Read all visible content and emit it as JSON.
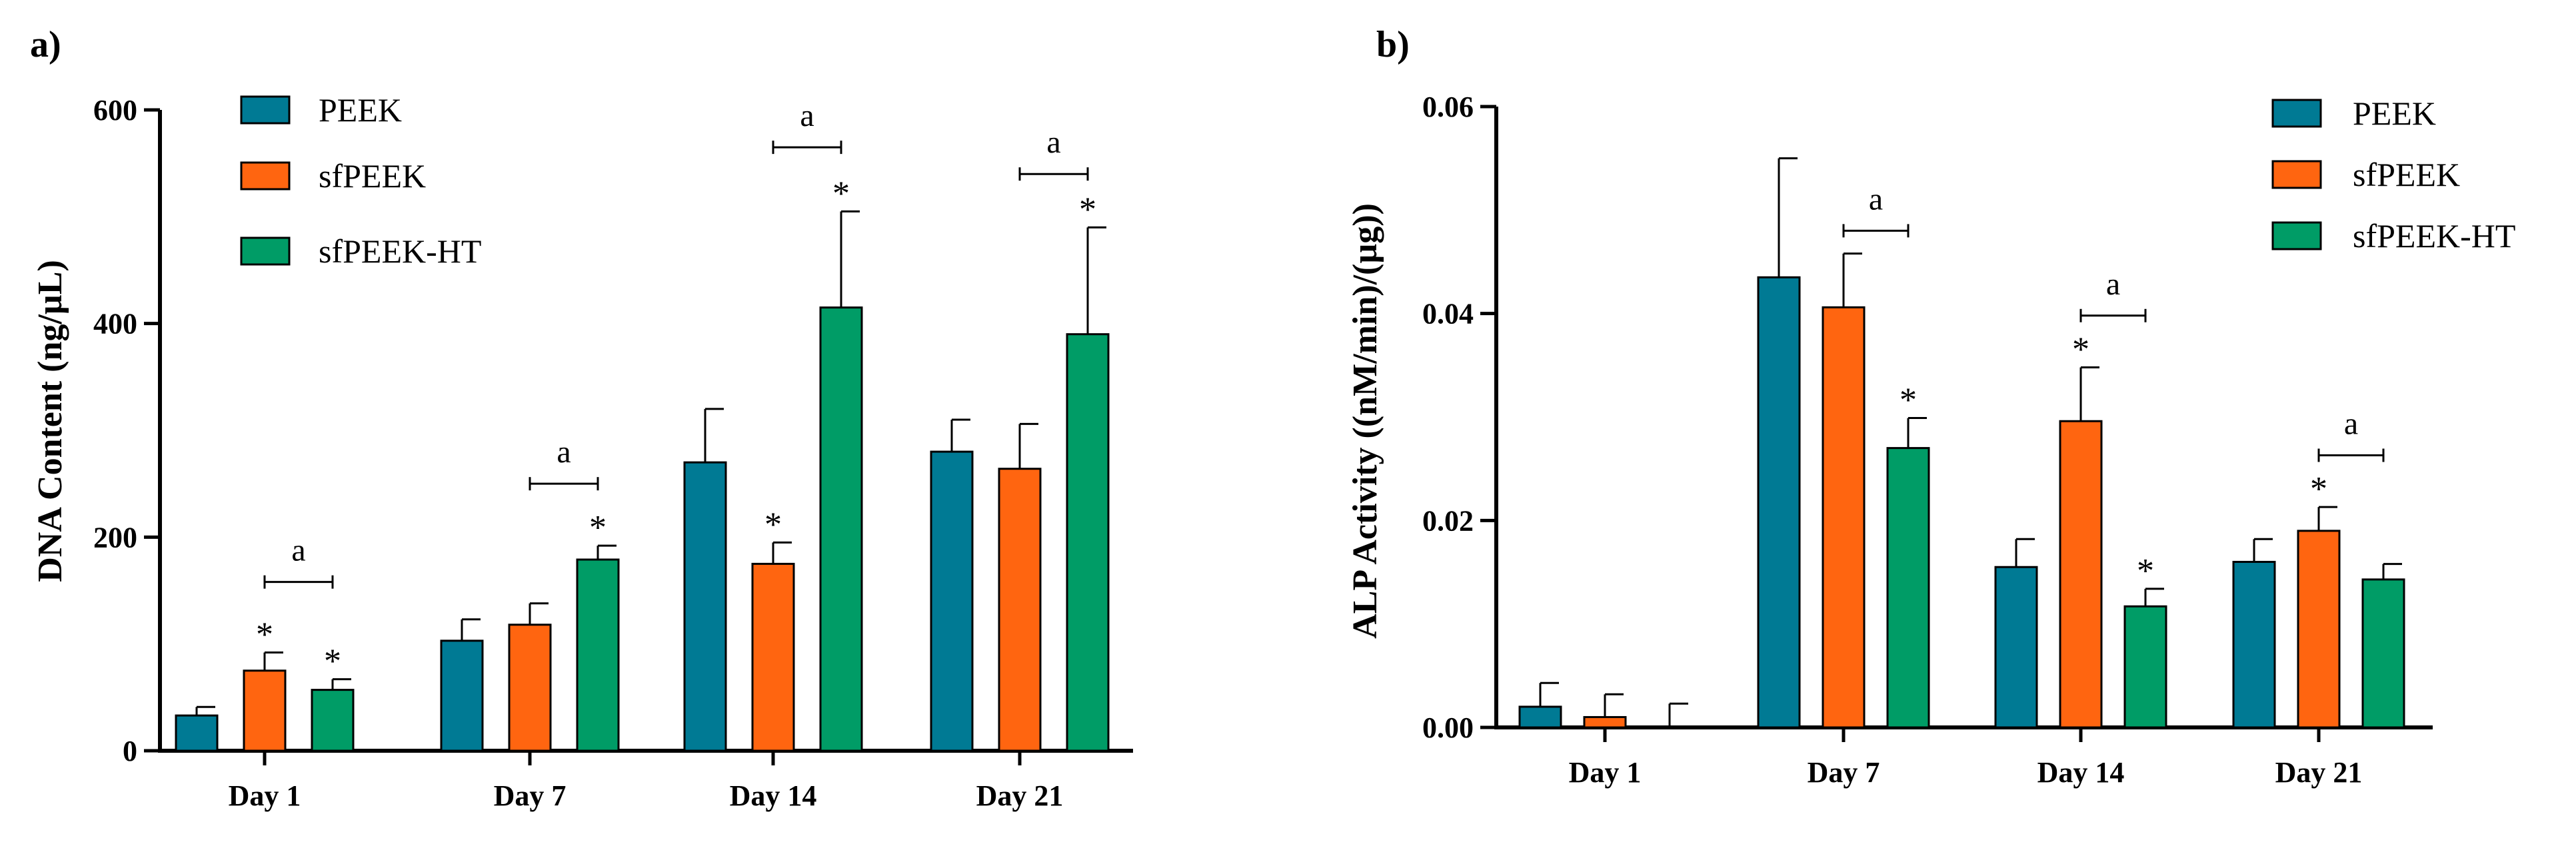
{
  "chart_data": [
    {
      "type": "bar",
      "panel": "a)",
      "title": "",
      "xlabel": "",
      "ylabel": "DNA Content (ng/µL)",
      "ylim": [
        0,
        600
      ],
      "yticks": [
        0,
        200,
        400,
        600
      ],
      "ytick_labels": [
        "0",
        "200",
        "400",
        "600"
      ],
      "categories": [
        "Day 1",
        "Day 7",
        "Day 14",
        "Day 21"
      ],
      "legend_position": "top-left",
      "series": [
        {
          "name": "PEEK",
          "color": "#007A94",
          "values": [
            33,
            103,
            270,
            280
          ],
          "errors": [
            8,
            20,
            50,
            30
          ],
          "stars": [
            false,
            false,
            false,
            false
          ]
        },
        {
          "name": "sfPEEK",
          "color": "#FF6510",
          "values": [
            75,
            118,
            175,
            264
          ],
          "errors": [
            17,
            20,
            20,
            42
          ],
          "stars": [
            true,
            false,
            true,
            false
          ]
        },
        {
          "name": "sfPEEK-HT",
          "color": "#009C66",
          "values": [
            57,
            179,
            415,
            390
          ],
          "errors": [
            10,
            13,
            90,
            100
          ],
          "stars": [
            true,
            true,
            true,
            true
          ]
        }
      ],
      "significance": [
        {
          "category": 0,
          "from": "sfPEEK",
          "to": "sfPEEK-HT",
          "label": "a",
          "level": 158
        },
        {
          "category": 1,
          "from": "sfPEEK",
          "to": "sfPEEK-HT",
          "label": "a",
          "level": 250
        },
        {
          "category": 2,
          "from": "sfPEEK",
          "to": "sfPEEK-HT",
          "label": "a",
          "level": 565
        },
        {
          "category": 3,
          "from": "sfPEEK",
          "to": "sfPEEK-HT",
          "label": "a",
          "level": 540
        }
      ],
      "star_symbol": "*"
    },
    {
      "type": "bar",
      "panel": "b)",
      "title": "",
      "xlabel": "",
      "ylabel": "ALP Activity ((nM/min)/(µg))",
      "ylim": [
        0,
        0.06
      ],
      "yticks": [
        0,
        0.02,
        0.04,
        0.06
      ],
      "ytick_labels": [
        "0.00",
        "0.02",
        "0.04",
        "0.06"
      ],
      "categories": [
        "Day 1",
        "Day 7",
        "Day 14",
        "Day 21"
      ],
      "legend_position": "top-right",
      "series": [
        {
          "name": "PEEK",
          "color": "#007A94",
          "values": [
            0.002,
            0.0435,
            0.0155,
            0.016
          ],
          "errors": [
            0.0023,
            0.0115,
            0.0027,
            0.0022
          ],
          "stars": [
            false,
            false,
            false,
            false
          ]
        },
        {
          "name": "sfPEEK",
          "color": "#FF6510",
          "values": [
            0.001,
            0.0406,
            0.0296,
            0.019
          ],
          "errors": [
            0.0022,
            0.0052,
            0.0052,
            0.0023
          ],
          "stars": [
            false,
            false,
            true,
            true
          ]
        },
        {
          "name": "sfPEEK-HT",
          "color": "#009C66",
          "values": [
            0,
            0.027,
            0.0117,
            0.0143
          ],
          "errors": [
            0.0023,
            0.0029,
            0.0017,
            0.0015
          ],
          "stars": [
            false,
            true,
            true,
            false
          ]
        }
      ],
      "significance": [
        {
          "category": 1,
          "from": "sfPEEK",
          "to": "sfPEEK-HT",
          "label": "a",
          "level": 0.048
        },
        {
          "category": 2,
          "from": "sfPEEK",
          "to": "sfPEEK-HT",
          "label": "a",
          "level": 0.0398
        },
        {
          "category": 3,
          "from": "sfPEEK",
          "to": "sfPEEK-HT",
          "label": "a",
          "level": 0.0263
        }
      ],
      "star_symbol": "*"
    }
  ]
}
